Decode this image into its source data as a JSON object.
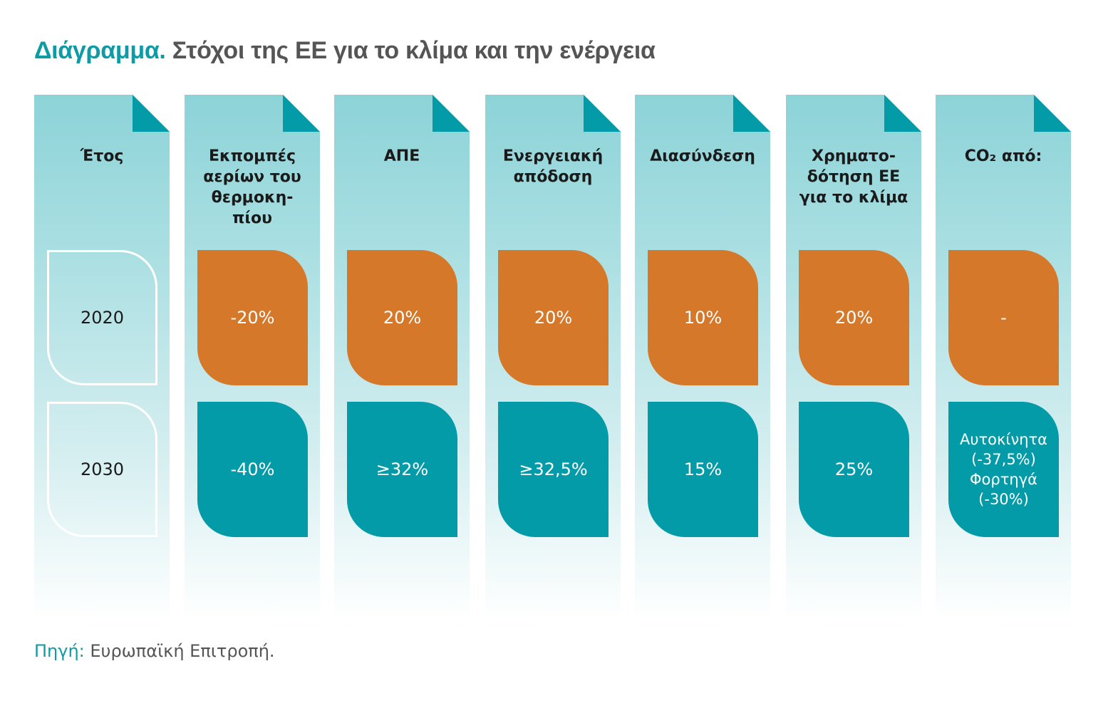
{
  "title": {
    "lead": "Διάγραμμα.",
    "text": "Στόχοι της ΕΕ για το κλίμα και την ενέργεια"
  },
  "colors": {
    "accent": "#0e9ba6",
    "target_2020": "#d5782a",
    "target_2030": "#039ba7",
    "column_bg": "#8cd3d8"
  },
  "columns": [
    {
      "header": "Έτος",
      "v2020": "2020",
      "v2030": "2030"
    },
    {
      "header": "Εκπομπές αερίων του θερμοκη-πίου",
      "v2020": "-20%",
      "v2030": "-40%"
    },
    {
      "header": "ΑΠΕ",
      "v2020": "20%",
      "v2030": "≥32%"
    },
    {
      "header": "Ενεργειακή απόδοση",
      "v2020": "20%",
      "v2030": "≥32,5%"
    },
    {
      "header": "Διασύνδεση",
      "v2020": "10%",
      "v2030": "15%"
    },
    {
      "header": "Χρηματο-δότηση ΕΕ για το κλίμα",
      "v2020": "20%",
      "v2030": "25%"
    },
    {
      "header": "CO₂ από:",
      "v2020": "-",
      "v2030": "Αυτοκίνητα (-37,5%) Φορτηγά (-30%)"
    }
  ],
  "header_lines": [
    [
      "Έτος"
    ],
    [
      "Εκπομπές",
      "αερίων του",
      "θερμοκη-",
      "πίου"
    ],
    [
      "ΑΠΕ"
    ],
    [
      "Ενεργειακή",
      "απόδοση"
    ],
    [
      "Διασύνδεση"
    ],
    [
      "Χρηματο-",
      "δότηση ΕΕ",
      "για το κλίμα"
    ],
    [
      "CO₂ από:"
    ]
  ],
  "co2_2030_lines": [
    "Αυτοκίνητα",
    "(-37,5%)",
    "Φορτηγά",
    "(-30%)"
  ],
  "source": {
    "label": "Πηγή:",
    "text": " Ευρωπαϊκή Επιτροπή."
  }
}
